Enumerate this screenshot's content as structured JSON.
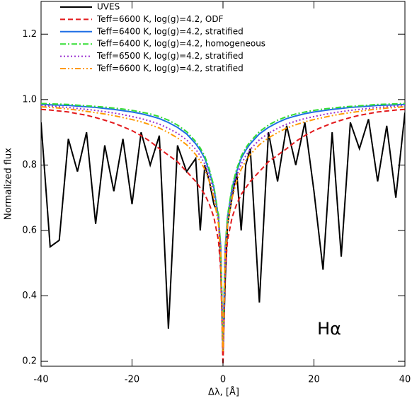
{
  "chart_data": {
    "type": "line",
    "annotation": "Hα",
    "xlabel": "Δλ, [Å]",
    "ylabel": "Normalized flux",
    "xlim": [
      -40,
      40
    ],
    "ylim": [
      0.185,
      1.3
    ],
    "xticks": [
      -40,
      -20,
      0,
      20,
      40
    ],
    "yticks": [
      0.2,
      0.4,
      0.6,
      0.8,
      {
        "value": 1,
        "label": "1.0"
      },
      1.2
    ],
    "x": [
      -40,
      -38,
      -36,
      -34,
      -32,
      -30,
      -28,
      -26,
      -24,
      -22,
      -20,
      -18,
      -16,
      -14,
      -12,
      -10,
      -8,
      -6,
      -5,
      -4,
      -3,
      -2,
      -1,
      -0.5,
      0,
      0.5,
      1,
      2,
      3,
      4,
      5,
      6,
      8,
      10,
      12,
      14,
      16,
      18,
      20,
      22,
      24,
      26,
      28,
      30,
      32,
      34,
      36,
      38,
      40
    ],
    "series": [
      {
        "name": "UVES",
        "color": "#000000",
        "linestyle": "solid",
        "values": [
          0.93,
          0.55,
          0.57,
          0.88,
          0.78,
          0.9,
          0.62,
          0.86,
          0.72,
          0.88,
          0.68,
          0.9,
          0.8,
          0.89,
          0.3,
          0.86,
          0.78,
          0.82,
          0.6,
          0.8,
          0.75,
          0.68,
          0.65,
          0.5,
          0.22,
          0.45,
          0.62,
          0.7,
          0.78,
          0.6,
          0.8,
          0.85,
          0.38,
          0.9,
          0.75,
          0.92,
          0.8,
          0.93,
          0.72,
          0.48,
          0.9,
          0.52,
          0.93,
          0.85,
          0.94,
          0.75,
          0.92,
          0.7,
          0.96
        ]
      },
      {
        "name": "Teff=6600 K, log(g)=4.2, ODF",
        "color": "#e3191c",
        "linestyle": "dashed",
        "values": [
          0.97,
          0.968,
          0.965,
          0.962,
          0.957,
          0.952,
          0.945,
          0.937,
          0.928,
          0.917,
          0.905,
          0.89,
          0.872,
          0.85,
          0.83,
          0.81,
          0.78,
          0.75,
          0.73,
          0.71,
          0.68,
          0.64,
          0.57,
          0.48,
          0.19,
          0.48,
          0.57,
          0.64,
          0.68,
          0.71,
          0.73,
          0.75,
          0.78,
          0.81,
          0.83,
          0.85,
          0.872,
          0.89,
          0.905,
          0.917,
          0.928,
          0.937,
          0.945,
          0.952,
          0.957,
          0.962,
          0.965,
          0.968,
          0.97
        ]
      },
      {
        "name": "Teff=6400 K, log(g)=4.2, stratified",
        "color": "#1f6fe5",
        "linestyle": "solid",
        "values": [
          0.985,
          0.984,
          0.983,
          0.982,
          0.98,
          0.978,
          0.976,
          0.973,
          0.97,
          0.966,
          0.962,
          0.957,
          0.95,
          0.942,
          0.93,
          0.915,
          0.895,
          0.865,
          0.845,
          0.82,
          0.78,
          0.73,
          0.64,
          0.55,
          0.25,
          0.55,
          0.64,
          0.73,
          0.78,
          0.82,
          0.845,
          0.865,
          0.895,
          0.915,
          0.93,
          0.942,
          0.95,
          0.957,
          0.962,
          0.966,
          0.97,
          0.973,
          0.976,
          0.978,
          0.98,
          0.982,
          0.983,
          0.984,
          0.985
        ]
      },
      {
        "name": "Teff=6400 K, log(g)=4.2, homogeneous",
        "color": "#33dd33",
        "linestyle": "dashdot",
        "values": [
          0.988,
          0.987,
          0.986,
          0.985,
          0.983,
          0.981,
          0.979,
          0.977,
          0.974,
          0.971,
          0.967,
          0.962,
          0.956,
          0.948,
          0.937,
          0.922,
          0.902,
          0.872,
          0.852,
          0.827,
          0.787,
          0.735,
          0.645,
          0.55,
          0.26,
          0.55,
          0.645,
          0.735,
          0.787,
          0.827,
          0.852,
          0.872,
          0.902,
          0.922,
          0.937,
          0.948,
          0.956,
          0.962,
          0.967,
          0.971,
          0.974,
          0.977,
          0.979,
          0.981,
          0.983,
          0.985,
          0.986,
          0.987,
          0.988
        ]
      },
      {
        "name": "Teff=6500 K, log(g)=4.2, stratified",
        "color": "#9b30d0",
        "linestyle": "dotted",
        "values": [
          0.982,
          0.98,
          0.978,
          0.976,
          0.973,
          0.97,
          0.967,
          0.963,
          0.959,
          0.954,
          0.948,
          0.942,
          0.934,
          0.925,
          0.912,
          0.897,
          0.877,
          0.848,
          0.828,
          0.803,
          0.765,
          0.715,
          0.63,
          0.54,
          0.24,
          0.54,
          0.63,
          0.715,
          0.765,
          0.803,
          0.828,
          0.848,
          0.877,
          0.897,
          0.912,
          0.925,
          0.934,
          0.942,
          0.948,
          0.954,
          0.959,
          0.963,
          0.967,
          0.97,
          0.973,
          0.976,
          0.978,
          0.98,
          0.982
        ]
      },
      {
        "name": "Teff=6600 K, log(g)=4.2, stratified",
        "color": "#ff9a00",
        "linestyle": "dashdotdot",
        "values": [
          0.978,
          0.976,
          0.974,
          0.971,
          0.968,
          0.964,
          0.96,
          0.956,
          0.951,
          0.945,
          0.939,
          0.932,
          0.923,
          0.913,
          0.899,
          0.883,
          0.862,
          0.832,
          0.812,
          0.787,
          0.75,
          0.7,
          0.62,
          0.53,
          0.23,
          0.53,
          0.62,
          0.7,
          0.75,
          0.787,
          0.812,
          0.832,
          0.862,
          0.883,
          0.899,
          0.913,
          0.923,
          0.932,
          0.939,
          0.945,
          0.951,
          0.956,
          0.96,
          0.964,
          0.968,
          0.971,
          0.974,
          0.976,
          0.978
        ]
      }
    ]
  }
}
